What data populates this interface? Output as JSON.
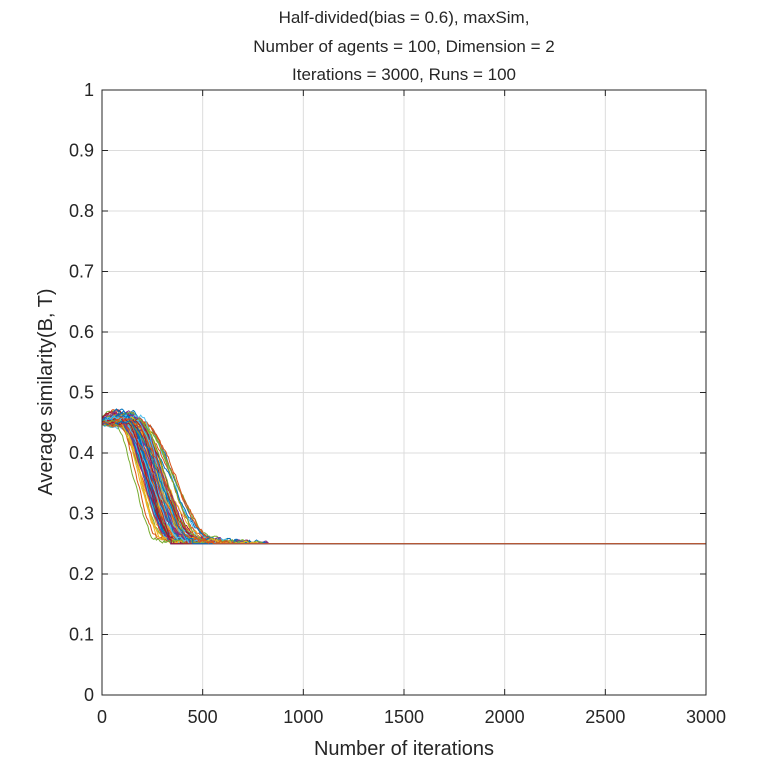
{
  "chart_data": {
    "type": "line",
    "title_lines": [
      "Half-divided(bias = 0.6), maxSim,",
      "Number of agents = 100, Dimension = 2",
      "Iterations = 3000, Runs = 100"
    ],
    "xlabel": "Number of iterations",
    "ylabel": "Average similarity(B, T)",
    "xlim": [
      0,
      3000
    ],
    "ylim": [
      0,
      1
    ],
    "xticks": [
      0,
      500,
      1000,
      1500,
      2000,
      2500,
      3000
    ],
    "xtick_labels": [
      "0",
      "500",
      "1000",
      "1500",
      "2000",
      "2500",
      "3000"
    ],
    "yticks": [
      0,
      0.1,
      0.2,
      0.3,
      0.4,
      0.5,
      0.6,
      0.7,
      0.8,
      0.9,
      1
    ],
    "ytick_labels": [
      "0",
      "0.1",
      "0.2",
      "0.3",
      "0.4",
      "0.5",
      "0.6",
      "0.7",
      "0.8",
      "0.9",
      "1"
    ],
    "grid": true,
    "series_count": 100,
    "series_summary": {
      "initial_value": 0.45,
      "peak_value": 0.47,
      "converged_value": 0.25,
      "convergence_iteration_range": [
        340,
        840
      ]
    },
    "series_colors": [
      "#0072BD",
      "#D95319",
      "#EDB120",
      "#7E2F8E",
      "#77AC30",
      "#4DBEEE",
      "#A2142F"
    ]
  }
}
